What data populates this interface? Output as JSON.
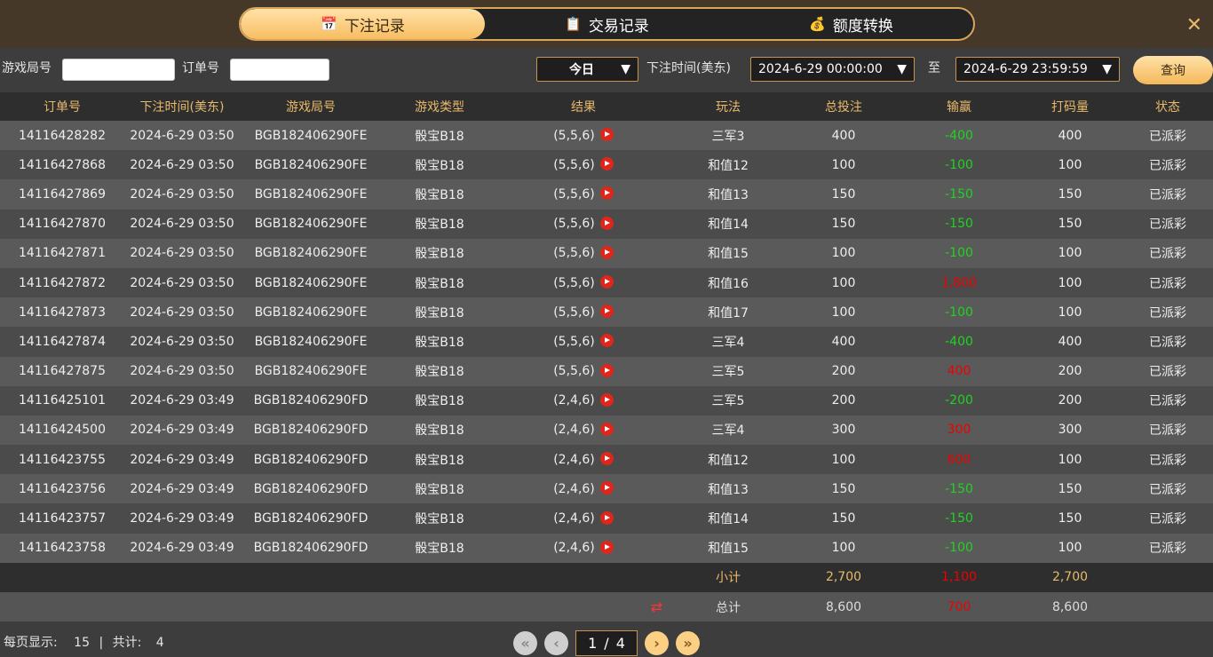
{
  "tabs": [
    {
      "label": "下注记录",
      "icon": "calendar-icon"
    },
    {
      "label": "交易记录",
      "icon": "clipboard-icon"
    },
    {
      "label": "额度转换",
      "icon": "coins-icon"
    }
  ],
  "close": "✕",
  "filter": {
    "game_round_label": "游戏局号",
    "game_round_value": "",
    "order_label": "订单号",
    "order_value": "",
    "period": "今日",
    "time_label": "下注时间(美东)",
    "start": "2024-6-29 00:00:00",
    "to_label": "至",
    "end": "2024-6-29 23:59:59",
    "query": "查询"
  },
  "columns": [
    "订单号",
    "下注时间(美东)",
    "游戏局号",
    "游戏类型",
    "结果",
    "玩法",
    "总投注",
    "输赢",
    "打码量",
    "状态"
  ],
  "rows": [
    [
      "14116428282",
      "2024-6-29 03:50",
      "BGB182406290FE",
      "骰宝B18",
      "(5,5,6)",
      "三军3",
      "400",
      "-400",
      "400",
      "已派彩"
    ],
    [
      "14116427868",
      "2024-6-29 03:50",
      "BGB182406290FE",
      "骰宝B18",
      "(5,5,6)",
      "和值12",
      "100",
      "-100",
      "100",
      "已派彩"
    ],
    [
      "14116427869",
      "2024-6-29 03:50",
      "BGB182406290FE",
      "骰宝B18",
      "(5,5,6)",
      "和值13",
      "150",
      "-150",
      "150",
      "已派彩"
    ],
    [
      "14116427870",
      "2024-6-29 03:50",
      "BGB182406290FE",
      "骰宝B18",
      "(5,5,6)",
      "和值14",
      "150",
      "-150",
      "150",
      "已派彩"
    ],
    [
      "14116427871",
      "2024-6-29 03:50",
      "BGB182406290FE",
      "骰宝B18",
      "(5,5,6)",
      "和值15",
      "100",
      "-100",
      "100",
      "已派彩"
    ],
    [
      "14116427872",
      "2024-6-29 03:50",
      "BGB182406290FE",
      "骰宝B18",
      "(5,5,6)",
      "和值16",
      "100",
      "1,800",
      "100",
      "已派彩"
    ],
    [
      "14116427873",
      "2024-6-29 03:50",
      "BGB182406290FE",
      "骰宝B18",
      "(5,5,6)",
      "和值17",
      "100",
      "-100",
      "100",
      "已派彩"
    ],
    [
      "14116427874",
      "2024-6-29 03:50",
      "BGB182406290FE",
      "骰宝B18",
      "(5,5,6)",
      "三军4",
      "400",
      "-400",
      "400",
      "已派彩"
    ],
    [
      "14116427875",
      "2024-6-29 03:50",
      "BGB182406290FE",
      "骰宝B18",
      "(5,5,6)",
      "三军5",
      "200",
      "400",
      "200",
      "已派彩"
    ],
    [
      "14116425101",
      "2024-6-29 03:49",
      "BGB182406290FD",
      "骰宝B18",
      "(2,4,6)",
      "三军5",
      "200",
      "-200",
      "200",
      "已派彩"
    ],
    [
      "14116424500",
      "2024-6-29 03:49",
      "BGB182406290FD",
      "骰宝B18",
      "(2,4,6)",
      "三军4",
      "300",
      "300",
      "300",
      "已派彩"
    ],
    [
      "14116423755",
      "2024-6-29 03:49",
      "BGB182406290FD",
      "骰宝B18",
      "(2,4,6)",
      "和值12",
      "100",
      "600",
      "100",
      "已派彩"
    ],
    [
      "14116423756",
      "2024-6-29 03:49",
      "BGB182406290FD",
      "骰宝B18",
      "(2,4,6)",
      "和值13",
      "150",
      "-150",
      "150",
      "已派彩"
    ],
    [
      "14116423757",
      "2024-6-29 03:49",
      "BGB182406290FD",
      "骰宝B18",
      "(2,4,6)",
      "和值14",
      "150",
      "-150",
      "150",
      "已派彩"
    ],
    [
      "14116423758",
      "2024-6-29 03:49",
      "BGB182406290FD",
      "骰宝B18",
      "(2,4,6)",
      "和值15",
      "100",
      "-100",
      "100",
      "已派彩"
    ]
  ],
  "subtotal": {
    "label": "小计",
    "bet": "2,700",
    "win": "1,100",
    "turnover": "2,700"
  },
  "total": {
    "label": "总计",
    "bet": "8,600",
    "win": "700",
    "turnover": "8,600"
  },
  "colors": {
    "accent": "#e8b96a",
    "win": "#e00000",
    "loss": "#1fd31f"
  },
  "footer": {
    "per_page_label": "每页显示:",
    "per_page": "15",
    "sep": "|",
    "total_label": "共计:",
    "total": "4"
  },
  "pagination": {
    "current": "1",
    "slash": "/",
    "pages": "4"
  }
}
